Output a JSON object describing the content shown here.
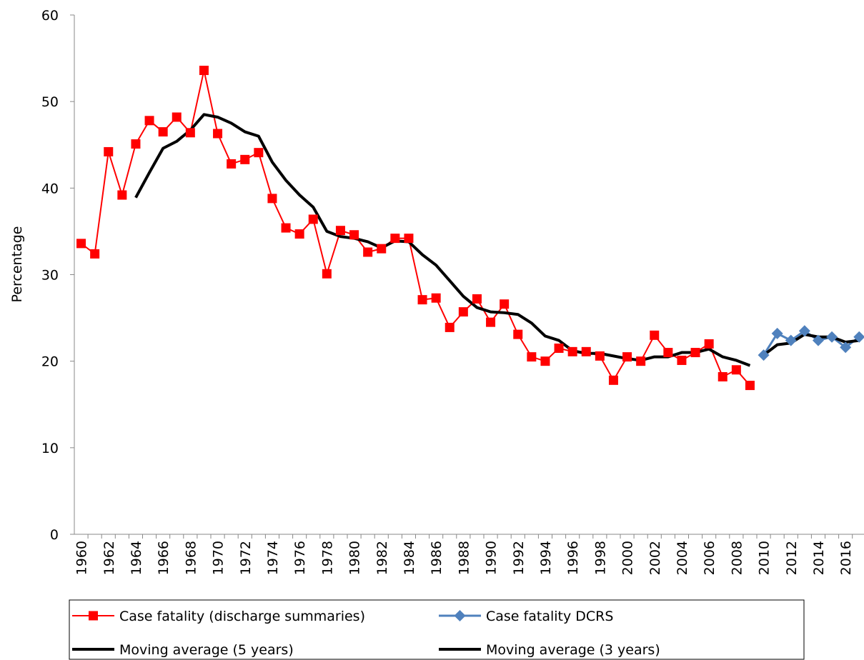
{
  "chart_data": {
    "type": "line",
    "y_label": "Percentage",
    "categories": [
      "1960",
      null,
      "1962",
      null,
      "1964",
      null,
      "1966",
      null,
      "1968",
      null,
      "1970",
      null,
      "1972",
      null,
      "1974",
      null,
      "1976",
      null,
      "1978",
      null,
      "1980",
      null,
      "1982",
      null,
      "1984",
      null,
      "1986",
      null,
      "1988",
      null,
      "1990",
      null,
      "1992",
      null,
      "1994",
      null,
      "1996",
      null,
      "1998",
      null,
      "2000",
      null,
      "2002",
      null,
      "2004",
      null,
      "2006",
      null,
      "2008",
      null,
      "2010",
      null,
      "2012",
      null,
      "2014",
      null,
      "2016",
      null
    ],
    "series": [
      {
        "name": "Case fatality (discharge summaries)",
        "color": "#ff0000",
        "marker": "square",
        "width": 2,
        "values": [
          33.6,
          32.4,
          44.2,
          39.2,
          45.1,
          47.8,
          46.5,
          48.2,
          46.4,
          53.6,
          46.3,
          42.8,
          43.3,
          44.1,
          38.8,
          35.4,
          34.7,
          36.4,
          30.1,
          35.1,
          34.6,
          32.6,
          33.0,
          34.2,
          34.2,
          27.1,
          27.3,
          23.9,
          25.7,
          27.2,
          24.5,
          26.6,
          23.1,
          20.5,
          20.0,
          21.5,
          21.1,
          21.1,
          20.6,
          17.8,
          20.5,
          20.0,
          23.0,
          21.0,
          20.1,
          21.0,
          22.0,
          18.2,
          19.0,
          17.2,
          null,
          null,
          null,
          null,
          null,
          null,
          null,
          null
        ]
      },
      {
        "name": "Case fatality DCRS",
        "color": "#4f81bd",
        "marker": "diamond",
        "width": 3,
        "values": [
          null,
          null,
          null,
          null,
          null,
          null,
          null,
          null,
          null,
          null,
          null,
          null,
          null,
          null,
          null,
          null,
          null,
          null,
          null,
          null,
          null,
          null,
          null,
          null,
          null,
          null,
          null,
          null,
          null,
          null,
          null,
          null,
          null,
          null,
          null,
          null,
          null,
          null,
          null,
          null,
          null,
          null,
          null,
          null,
          null,
          null,
          null,
          null,
          null,
          null,
          20.7,
          23.2,
          22.4,
          23.5,
          22.4,
          22.8,
          21.6,
          22.8
        ]
      },
      {
        "name": "Moving average (5 years)",
        "color": "#000000",
        "marker": "none",
        "width": 4,
        "values": [
          null,
          null,
          null,
          null,
          38.9,
          41.8,
          44.6,
          45.4,
          46.7,
          48.5,
          48.2,
          47.5,
          46.5,
          46.0,
          43.0,
          40.9,
          39.2,
          37.8,
          35.0,
          34.4,
          34.2,
          33.8,
          33.1,
          33.9,
          33.8,
          32.3,
          31.1,
          29.3,
          27.5,
          26.2,
          25.7,
          25.6,
          25.4,
          24.4,
          22.9,
          22.4,
          21.2,
          20.9,
          20.9,
          20.6,
          20.3,
          20.1,
          20.5,
          20.5,
          21.0,
          21.0,
          21.4,
          20.5,
          20.1,
          19.5,
          null,
          null,
          null,
          null,
          null,
          null,
          null,
          null
        ]
      },
      {
        "name": "Moving average (3 years)",
        "color": "#000000",
        "marker": "none",
        "width": 4,
        "values": [
          null,
          null,
          null,
          null,
          null,
          null,
          null,
          null,
          null,
          null,
          null,
          null,
          null,
          null,
          null,
          null,
          null,
          null,
          null,
          null,
          null,
          null,
          null,
          null,
          null,
          null,
          null,
          null,
          null,
          null,
          null,
          null,
          null,
          null,
          null,
          null,
          null,
          null,
          null,
          null,
          null,
          null,
          null,
          null,
          null,
          null,
          null,
          null,
          null,
          null,
          20.7,
          21.9,
          22.1,
          23.1,
          22.8,
          22.8,
          22.2,
          22.4
        ]
      }
    ],
    "ylim": [
      0,
      60
    ],
    "yticks": [
      0,
      10,
      20,
      30,
      40,
      50,
      60
    ],
    "grid": false
  }
}
